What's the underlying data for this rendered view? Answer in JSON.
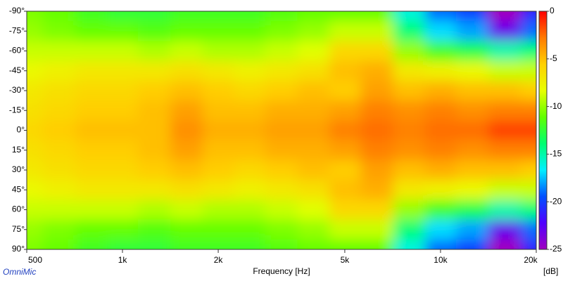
{
  "chart_data": {
    "type": "heatmap",
    "x_label": "Frequency [Hz]",
    "colorbar_label": "[dB]",
    "brand": "OmniMic",
    "x": [
      500,
      630,
      800,
      1000,
      1250,
      1600,
      2000,
      2500,
      3150,
      4000,
      5000,
      6300,
      8000,
      10000,
      12500,
      16000,
      20000
    ],
    "y": [
      -90,
      -75,
      -60,
      -45,
      -30,
      -15,
      0,
      15,
      30,
      45,
      60,
      75,
      90
    ],
    "values": [
      [
        -10.5,
        -11,
        -12,
        -12.5,
        -12.5,
        -12,
        -12,
        -12,
        -11.5,
        -11,
        -11,
        -11,
        -16,
        -19,
        -20,
        -25,
        -21
      ],
      [
        -10,
        -10.5,
        -11,
        -11,
        -11.5,
        -11,
        -11,
        -11,
        -10.5,
        -10,
        -9,
        -9,
        -14,
        -17,
        -18,
        -23,
        -19
      ],
      [
        -9,
        -9,
        -9,
        -9,
        -9.5,
        -9,
        -9.5,
        -9.5,
        -9,
        -8.5,
        -6,
        -6,
        -10,
        -12,
        -13,
        -15,
        -14
      ],
      [
        -8,
        -7.5,
        -7,
        -7,
        -7,
        -6.5,
        -7,
        -7.5,
        -7,
        -6.5,
        -5,
        -4.5,
        -7,
        -7.5,
        -8,
        -9,
        -9
      ],
      [
        -7,
        -6.5,
        -6,
        -6,
        -5.5,
        -5,
        -5.5,
        -6,
        -5.5,
        -5,
        -5.5,
        -4,
        -5,
        -4.5,
        -5,
        -5,
        -5.5
      ],
      [
        -6.5,
        -6,
        -5.5,
        -5.5,
        -5,
        -4,
        -5,
        -5,
        -4.5,
        -4.5,
        -4,
        -3,
        -3.5,
        -3,
        -3.5,
        -3,
        -3
      ],
      [
        -6,
        -5.5,
        -5,
        -5,
        -5,
        -3.5,
        -4.5,
        -4.5,
        -4,
        -4,
        -3,
        -2.5,
        -3,
        -2.5,
        -2.5,
        -1.5,
        -1.5
      ],
      [
        -6.5,
        -6,
        -5.5,
        -5.5,
        -5,
        -4,
        -5,
        -5,
        -4.5,
        -4.5,
        -4,
        -3,
        -3.5,
        -3,
        -3.5,
        -3,
        -3
      ],
      [
        -7,
        -6.5,
        -6,
        -6,
        -5.5,
        -5,
        -5.5,
        -6,
        -5.5,
        -5,
        -5.5,
        -4,
        -5,
        -4.5,
        -5,
        -5,
        -5.5
      ],
      [
        -8,
        -7.5,
        -7,
        -7,
        -7,
        -6.5,
        -7,
        -7.5,
        -7,
        -6.5,
        -5,
        -4.5,
        -7,
        -7.5,
        -8,
        -9,
        -9
      ],
      [
        -9,
        -9,
        -9,
        -9,
        -9.5,
        -9,
        -9.5,
        -9.5,
        -9,
        -8.5,
        -6,
        -6,
        -10,
        -12,
        -13,
        -15,
        -14
      ],
      [
        -10,
        -10.5,
        -11,
        -11,
        -11.5,
        -11,
        -11,
        -11,
        -10.5,
        -10,
        -9,
        -9,
        -14,
        -17,
        -18,
        -23,
        -19
      ],
      [
        -10.5,
        -11,
        -12,
        -12.5,
        -12.5,
        -12,
        -12,
        -12,
        -11.5,
        -11,
        -11,
        -11,
        -16,
        -19,
        -20,
        -25,
        -21
      ]
    ],
    "x_scale": "log",
    "xlim": [
      500,
      20000
    ],
    "xticks": [
      500,
      {
        "value": 1000,
        "label": "1k"
      },
      {
        "value": 2000,
        "label": "2k"
      },
      {
        "value": 5000,
        "label": "5k"
      },
      {
        "value": 10000,
        "label": "10k"
      },
      {
        "value": 20000,
        "label": "20k"
      }
    ],
    "ylim": [
      -90,
      90
    ],
    "y_inverted": true,
    "yticks": [
      {
        "value": -90,
        "label": "-90°"
      },
      {
        "value": -75,
        "label": "-75°"
      },
      {
        "value": -60,
        "label": "-60°"
      },
      {
        "value": -45,
        "label": "-45°"
      },
      {
        "value": -30,
        "label": "-30°"
      },
      {
        "value": -15,
        "label": "-15°"
      },
      {
        "value": 0,
        "label": "0°"
      },
      {
        "value": 15,
        "label": "15°"
      },
      {
        "value": 30,
        "label": "30°"
      },
      {
        "value": 45,
        "label": "45°"
      },
      {
        "value": 60,
        "label": "60°"
      },
      {
        "value": 75,
        "label": "75°"
      },
      {
        "value": 90,
        "label": "90°"
      }
    ],
    "zlim": [
      -25,
      0
    ],
    "zticks": [
      0,
      -5,
      -10,
      -15,
      -20,
      -25
    ],
    "colormap": [
      "#ff0000",
      "#ff7a00",
      "#ffd000",
      "#e8ff00",
      "#60ff00",
      "#00ff70",
      "#00f0ff",
      "#0050ff",
      "#5000ff",
      "#a000c0"
    ]
  }
}
